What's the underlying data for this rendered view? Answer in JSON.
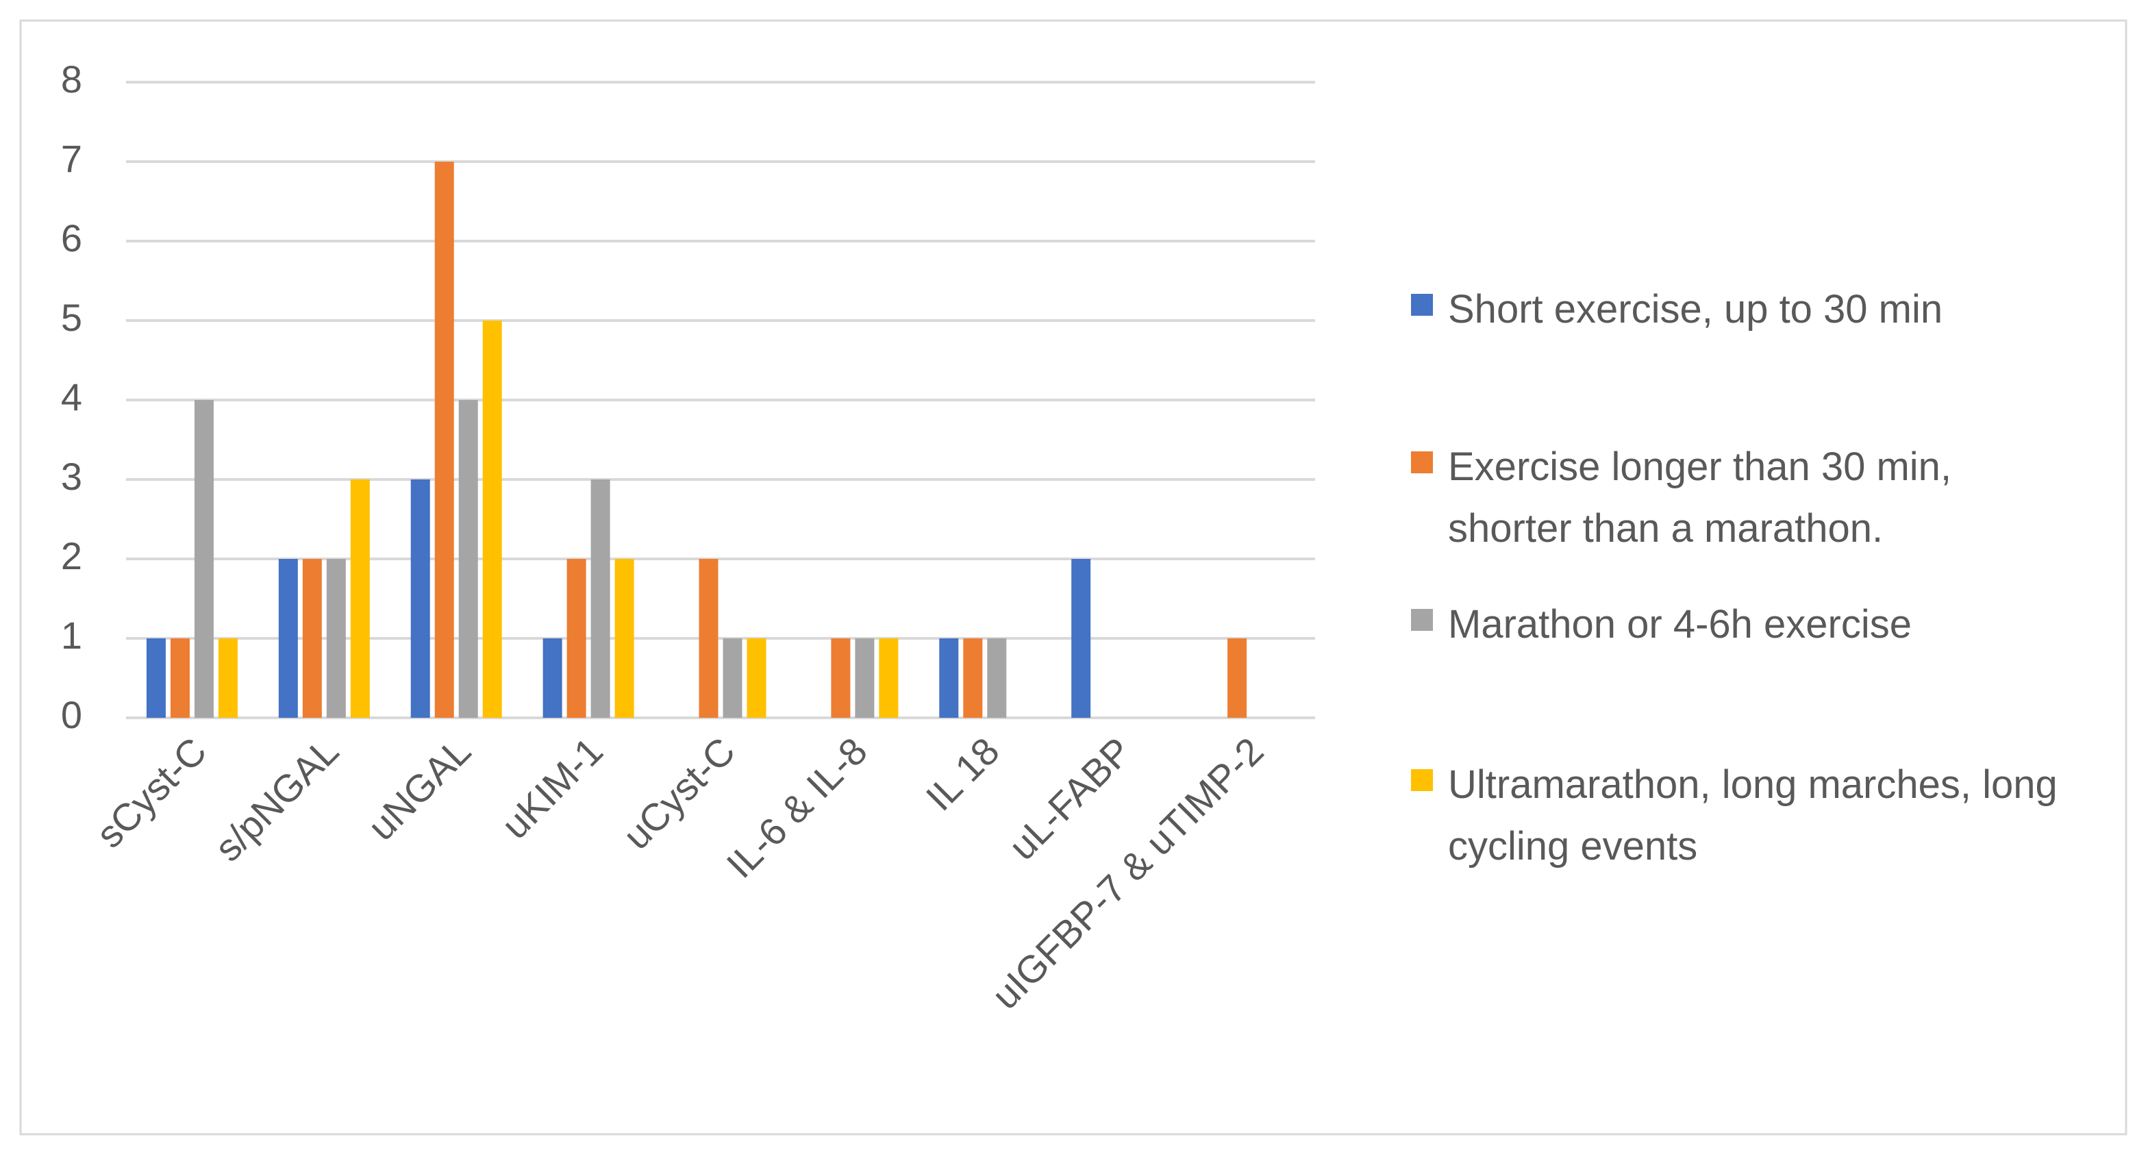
{
  "chart_data": {
    "type": "bar",
    "categories": [
      "sCyst-C",
      "s/pNGAL",
      "uNGAL",
      "uKIM-1",
      "uCyst-C",
      "IL-6 & IL-8",
      "IL 18",
      "uL-FABP",
      "uIGFBP-7 & uTIMP-2"
    ],
    "series": [
      {
        "name": "Short exercise, up to 30 min",
        "color": "#4472c4",
        "values": [
          1,
          2,
          3,
          1,
          0,
          0,
          1,
          2,
          0
        ]
      },
      {
        "name": "Exercise longer than 30 min, shorter than a marathon.",
        "color": "#ed7d31",
        "values": [
          1,
          2,
          7,
          2,
          2,
          1,
          1,
          0,
          1
        ]
      },
      {
        "name": "Marathon or 4-6h exercise",
        "color": "#a5a5a5",
        "values": [
          4,
          2,
          4,
          3,
          1,
          1,
          1,
          0,
          0
        ]
      },
      {
        "name": "Ultramarathon, long marches, long cycling events",
        "color": "#ffc000",
        "values": [
          1,
          3,
          5,
          2,
          1,
          1,
          0,
          0,
          0
        ]
      }
    ],
    "ylim": [
      0,
      8
    ],
    "yticks": [
      0,
      1,
      2,
      3,
      4,
      5,
      6,
      7,
      8
    ],
    "grid": true,
    "legend": "right"
  }
}
